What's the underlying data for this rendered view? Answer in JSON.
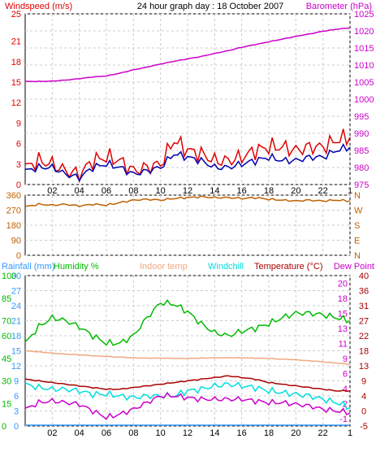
{
  "title": "24 hour graph day : 18 October 2007",
  "colors": {
    "wind": "#e00000",
    "gust_avg": "#0000b0",
    "baro": "#cc00cc",
    "dir": "#c06000",
    "rain": "#3399ff",
    "hum": "#00bb00",
    "indoor": "#f0a880",
    "windchill": "#00dddd",
    "temp": "#aa0000",
    "dew": "#cc00cc",
    "grid": "#cccccc",
    "frame": "#000000"
  },
  "legend": {
    "windspeed": "Windspeed (m/s)",
    "barometer": "Barometer (hPa)",
    "rainfall": "Rainfall (mm)",
    "humidity": "Humidity %",
    "indoor_temp": "Indoor temp",
    "windchill": "Windchill",
    "temperature": "Temperature (°C)",
    "dew_point": "Dew Point"
  },
  "x_ticks": [
    "02",
    "04",
    "06",
    "08",
    "10",
    "12",
    "14",
    "16",
    "18",
    "20",
    "22",
    "1"
  ],
  "chart_data": [
    {
      "type": "line",
      "panel": "wind",
      "y_left_ticks": [
        "0",
        "3",
        "6",
        "9",
        "12",
        "15",
        "18",
        "21",
        "25"
      ],
      "y_right_ticks": [
        "975",
        "980",
        "985",
        "990",
        "995",
        "1000",
        "1005",
        "1010",
        "1015",
        "1020",
        "1025"
      ],
      "ylim_left": [
        0,
        25
      ],
      "ylim_right": [
        975,
        1025
      ],
      "x": [
        0,
        1,
        2,
        3,
        4,
        5,
        6,
        7,
        8,
        9,
        10,
        11,
        12,
        13,
        14,
        15,
        16,
        17,
        18,
        19,
        20,
        21,
        22,
        23,
        24
      ],
      "series": [
        {
          "name": "Windspeed (m/s)",
          "axis": "left",
          "values": [
            2.5,
            3.5,
            3.0,
            2.0,
            1.5,
            3.5,
            4.0,
            3.5,
            2.0,
            2.5,
            3.0,
            6.5,
            5.0,
            4.5,
            3.5,
            3.5,
            4.0,
            5.0,
            5.5,
            5.5,
            5.0,
            5.5,
            5.5,
            6.5,
            7.0
          ]
        },
        {
          "name": "gust average",
          "axis": "left",
          "values": [
            2.0,
            2.5,
            2.5,
            1.5,
            1.0,
            2.5,
            3.0,
            2.5,
            1.5,
            2.0,
            2.5,
            4.5,
            4.0,
            3.5,
            2.5,
            2.5,
            3.0,
            3.5,
            4.0,
            3.5,
            3.5,
            4.0,
            4.0,
            5.0,
            5.5
          ]
        },
        {
          "name": "Barometer (hPa)",
          "axis": "right",
          "values": [
            1005.2,
            1005.2,
            1005.3,
            1005.6,
            1006.0,
            1006.5,
            1006.8,
            1007.6,
            1008.6,
            1009.4,
            1010.3,
            1011.1,
            1011.8,
            1012.5,
            1013.4,
            1014.2,
            1015.2,
            1016.0,
            1016.8,
            1017.6,
            1018.4,
            1019.1,
            1019.9,
            1020.5,
            1020.9
          ]
        }
      ]
    },
    {
      "type": "line",
      "panel": "direction",
      "y_left_ticks": [
        "0",
        "90",
        "180",
        "270",
        "360"
      ],
      "y_right_ticks": [
        "N",
        "E",
        "S",
        "W",
        "N"
      ],
      "ylim": [
        0,
        360
      ],
      "x": [
        0,
        1,
        2,
        3,
        4,
        5,
        6,
        7,
        8,
        9,
        10,
        11,
        12,
        13,
        14,
        15,
        16,
        17,
        18,
        19,
        20,
        21,
        22,
        23,
        24
      ],
      "series": [
        {
          "name": "wind direction",
          "values": [
            290,
            305,
            300,
            305,
            295,
            305,
            300,
            315,
            330,
            335,
            330,
            340,
            345,
            350,
            345,
            345,
            340,
            345,
            335,
            330,
            325,
            330,
            325,
            330,
            325
          ]
        }
      ]
    },
    {
      "type": "line",
      "panel": "temperature",
      "y_left_ticks": [
        "0",
        "15",
        "30",
        "45",
        "60",
        "70",
        "85",
        "100"
      ],
      "y_rain_ticks": [
        "0",
        "3",
        "6",
        "9",
        "12",
        "15",
        "18",
        "21",
        "24",
        "27",
        "30"
      ],
      "y_right_ticks": [
        "-5",
        "0",
        "4",
        "9",
        "13",
        "18",
        "22",
        "27",
        "31",
        "36",
        "40"
      ],
      "y_dew_ticks": [
        "-1",
        "2",
        "4",
        "6",
        "9",
        "11",
        "13",
        "15",
        "18",
        "20"
      ],
      "ylim_left": [
        0,
        100
      ],
      "ylim_right": [
        -5,
        40
      ],
      "x": [
        0,
        1,
        2,
        3,
        4,
        5,
        6,
        7,
        8,
        9,
        10,
        11,
        12,
        13,
        14,
        15,
        16,
        17,
        18,
        19,
        20,
        21,
        22,
        23,
        24
      ],
      "series": [
        {
          "name": "Humidity %",
          "axis": "left",
          "values": [
            55,
            66,
            72,
            70,
            66,
            60,
            55,
            55,
            60,
            72,
            82,
            81,
            76,
            68,
            62,
            60,
            63,
            65,
            68,
            72,
            75,
            75,
            74,
            72,
            70
          ]
        },
        {
          "name": "Indoor temp",
          "axis": "right",
          "values": [
            17.5,
            17.2,
            16.8,
            16.5,
            16.3,
            16.0,
            15.8,
            15.6,
            15.4,
            15.3,
            15.3,
            15.2,
            15.2,
            15.3,
            15.4,
            15.4,
            15.4,
            15.3,
            15.2,
            15.0,
            14.8,
            14.5,
            14.2,
            13.8,
            13.5
          ]
        },
        {
          "name": "Windchill",
          "axis": "right",
          "values": [
            7.5,
            6.5,
            6.0,
            6.0,
            5.5,
            4.5,
            4.5,
            4.0,
            3.5,
            4.0,
            4.0,
            4.0,
            5.5,
            6.0,
            7.0,
            7.5,
            7.0,
            6.5,
            5.5,
            5.0,
            4.5,
            4.0,
            3.0,
            2.0,
            0.5
          ]
        },
        {
          "name": "Temperature (°C)",
          "axis": "right",
          "values": [
            9.0,
            8.5,
            8.0,
            7.5,
            7.0,
            6.5,
            6.0,
            6.0,
            6.5,
            7.0,
            7.5,
            8.0,
            8.5,
            9.0,
            9.5,
            10.0,
            9.5,
            9.0,
            8.0,
            7.5,
            7.0,
            6.5,
            6.0,
            5.5,
            5.5
          ]
        },
        {
          "name": "Dew Point",
          "axis": "right",
          "values": [
            0.0,
            2.0,
            2.5,
            2.0,
            1.5,
            -0.5,
            -2.5,
            -1.5,
            0.0,
            2.0,
            4.0,
            4.0,
            3.5,
            3.0,
            3.0,
            3.0,
            3.0,
            2.5,
            2.0,
            2.0,
            1.5,
            1.0,
            0.0,
            -0.5,
            -1.0
          ]
        },
        {
          "name": "Rainfall (mm)",
          "axis": "rain",
          "values": [
            0,
            0,
            0,
            0,
            0,
            0,
            0,
            0,
            0,
            0,
            0,
            0,
            0,
            0,
            0,
            0,
            0,
            0,
            0,
            0,
            0,
            0,
            0,
            0,
            0
          ]
        }
      ]
    }
  ]
}
